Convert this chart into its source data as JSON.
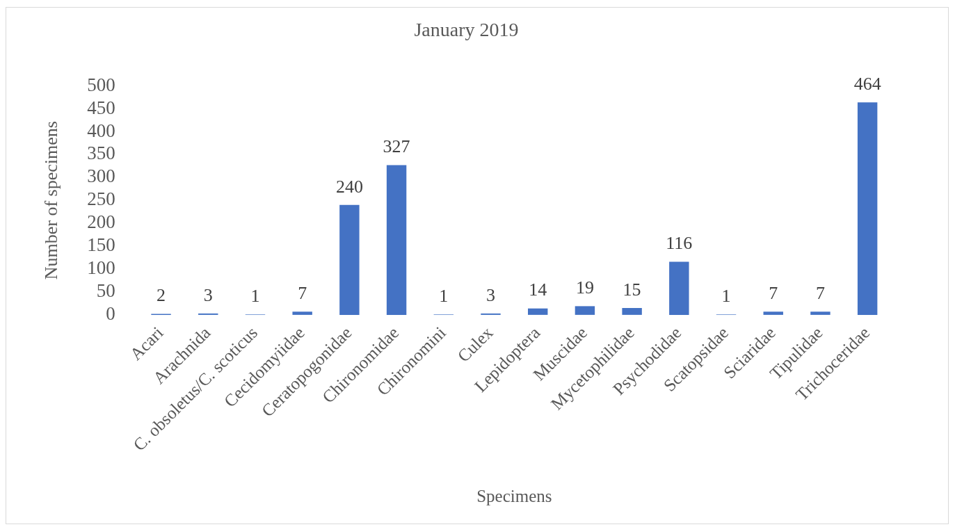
{
  "chart_data": {
    "type": "bar",
    "title": "January 2019",
    "xlabel": "Specimens",
    "ylabel": "Number of specimens",
    "categories": [
      "Acari",
      "Arachnida",
      "C. obsoletus/C. scoticus",
      "Cecidomyiidae",
      "Ceratopogonidae",
      "Chironomidae",
      "Chironomini",
      "Culex",
      "Lepidoptera",
      "Muscidae",
      "Mycetophilidae",
      "Psychodidae",
      "Scatopsidae",
      "Sciaridae",
      "Tipulidae",
      "Trichoceridae"
    ],
    "values": [
      2,
      3,
      1,
      7,
      240,
      327,
      1,
      3,
      14,
      19,
      15,
      116,
      1,
      7,
      7,
      464
    ],
    "color": "#4472c4",
    "ylim": [
      0,
      500
    ],
    "yticks": [
      0,
      50,
      100,
      150,
      200,
      250,
      300,
      350,
      400,
      450,
      500
    ],
    "data_labels": true
  }
}
